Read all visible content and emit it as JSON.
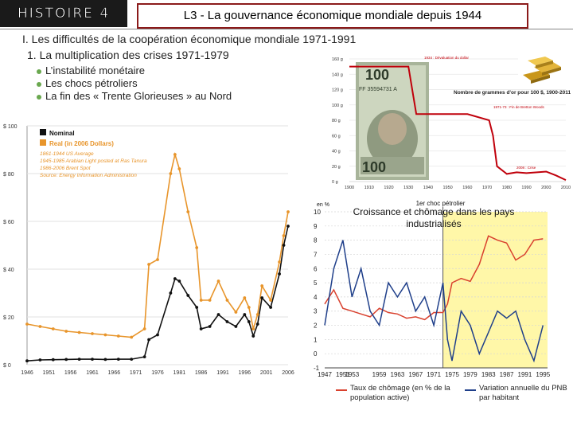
{
  "header": {
    "section": "HISTOIRE 4",
    "title": "L3 - La gouvernance économique mondiale depuis 1944"
  },
  "outline": {
    "heading1": "I. Les difficultés de la coopération économique mondiale 1971-1991",
    "heading2": "1. La multiplication des crises 1971-1979",
    "bullets": [
      "L’instabilité monétaire",
      "Les chocs pétroliers",
      "La fin des « Trente Glorieuses » au Nord"
    ]
  },
  "chart_data": [
    {
      "type": "line",
      "title": "",
      "x": [
        1946,
        1949,
        1952,
        1955,
        1958,
        1961,
        1964,
        1967,
        1970,
        1973,
        1974,
        1976,
        1979,
        1980,
        1981,
        1983,
        1985,
        1986,
        1988,
        1990,
        1992,
        1994,
        1996,
        1997,
        1998,
        1999,
        2000,
        2002,
        2004,
        2005,
        2006
      ],
      "series": [
        {
          "name": "Nominal",
          "color": "#111111",
          "values": [
            1.6,
            2.0,
            2.1,
            2.2,
            2.3,
            2.3,
            2.2,
            2.3,
            2.3,
            3.3,
            10.5,
            12.5,
            30,
            36,
            35,
            29,
            24,
            15,
            16,
            21,
            18,
            16,
            21,
            18,
            12,
            17,
            28,
            24,
            38,
            50,
            58
          ]
        },
        {
          "name": "Real (in 2006 Dollars)",
          "color": "#e8952b",
          "values": [
            17,
            16,
            15,
            14,
            13.5,
            13,
            12.5,
            12,
            11.5,
            15,
            42,
            44,
            80,
            88,
            82,
            64,
            49,
            27,
            27,
            35,
            27,
            22,
            28,
            24,
            15,
            21,
            33,
            27,
            43,
            54,
            64
          ]
        }
      ],
      "ylim": [
        0,
        100
      ],
      "yticks": [
        "$ 0",
        "$ 20",
        "$ 40",
        "$ 60",
        "$ 80",
        "$ 100"
      ],
      "xticks": [
        "1946",
        "1951",
        "1956",
        "1961",
        "1966",
        "1971",
        "1976",
        "1981",
        "1986",
        "1991",
        "1996",
        "2001",
        "2006"
      ],
      "annotations": [
        "1861-1944 US Average",
        "1945-1985 Arabian Light posted at Ras Tanura",
        "1986-2006 Brent Spot",
        "Source: Energy Information Administration"
      ]
    },
    {
      "type": "line",
      "title": "Nombre de grammes d'or pour 100 $, 1900-2011",
      "x": [
        1900,
        1910,
        1920,
        1930,
        1934,
        1940,
        1950,
        1960,
        1971,
        1973,
        1975,
        1980,
        1985,
        1990,
        2000,
        2005,
        2010
      ],
      "series": [
        {
          "name": "or",
          "color": "#c0000b",
          "values": [
            150,
            150,
            150,
            150,
            88,
            88,
            88,
            88,
            80,
            60,
            20,
            10,
            12,
            11,
            13,
            8,
            2
          ]
        }
      ],
      "ylim": [
        0,
        160
      ],
      "yticks": [
        "0 g",
        "20 g",
        "40 g",
        "60 g",
        "80 g",
        "100 g",
        "120 g",
        "140 g",
        "160 g"
      ],
      "xticks": [
        "1900",
        "1910",
        "1920",
        "1930",
        "1940",
        "1950",
        "1960",
        "1970",
        "1980",
        "1990",
        "2000",
        "2010"
      ],
      "annotations": [
        "1934 : Dévaluation du dollar",
        "1971-73 : Fin de Bretton Woods",
        "2008 : Crise"
      ]
    },
    {
      "type": "line",
      "title": "Croissance et chômage dans les pays industrialisés",
      "x": [
        1947,
        1949,
        1951,
        1953,
        1955,
        1957,
        1959,
        1961,
        1963,
        1965,
        1967,
        1969,
        1971,
        1973,
        1974,
        1975,
        1977,
        1979,
        1981,
        1983,
        1985,
        1987,
        1989,
        1991,
        1993,
        1995
      ],
      "series": [
        {
          "name": "Taux de chômage (en % de la population active)",
          "color": "#d9412e",
          "values": [
            3.5,
            4.5,
            3.2,
            3.0,
            2.8,
            2.6,
            3.2,
            2.9,
            2.8,
            2.5,
            2.6,
            2.4,
            2.9,
            2.9,
            3.5,
            5.0,
            5.3,
            5.1,
            6.3,
            8.3,
            8.0,
            7.8,
            6.6,
            7.0,
            8.0,
            8.1
          ]
        },
        {
          "name": "Variation annuelle du PNB par habitant",
          "color": "#1f3f8a",
          "values": [
            2,
            6,
            8,
            4,
            6,
            3,
            2,
            5,
            4,
            5,
            3,
            4,
            2,
            5,
            1,
            -0.5,
            3,
            2,
            0,
            1.5,
            3,
            2.5,
            3,
            1,
            -0.5,
            2
          ]
        }
      ],
      "ylim": [
        -1,
        10
      ],
      "yticks": [
        "-1",
        "0",
        "1",
        "2",
        "3",
        "4",
        "5",
        "6",
        "7",
        "8",
        "9",
        "10"
      ],
      "xticks": [
        "1947",
        "1951",
        "1953",
        "1959",
        "1963",
        "1967",
        "1971",
        "1975",
        "1979",
        "1983",
        "1987",
        "1991",
        "1995"
      ],
      "marker": "1er choc pétrolier",
      "marker_year": 1973,
      "unit_label": "en %"
    }
  ],
  "photos": {
    "banknote": "100 dollar banknote",
    "gold": "gold bars"
  }
}
